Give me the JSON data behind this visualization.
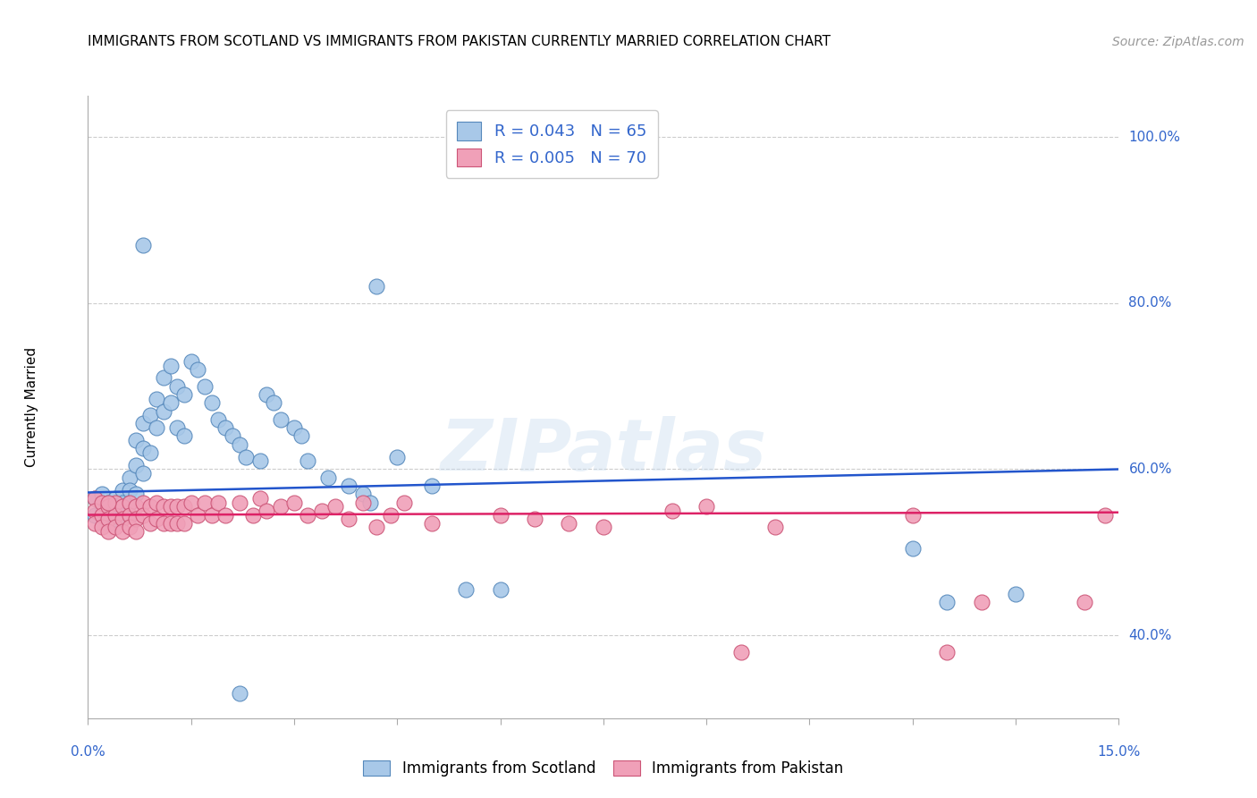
{
  "title": "IMMIGRANTS FROM SCOTLAND VS IMMIGRANTS FROM PAKISTAN CURRENTLY MARRIED CORRELATION CHART",
  "source": "Source: ZipAtlas.com",
  "ylabel": "Currently Married",
  "xlim": [
    0.0,
    0.15
  ],
  "ylim": [
    0.3,
    1.05
  ],
  "yticks": [
    0.4,
    0.6,
    0.8,
    1.0
  ],
  "ytick_labels": [
    "40.0%",
    "60.0%",
    "80.0%",
    "100.0%"
  ],
  "scotland_color": "#a8c8e8",
  "scotland_edge": "#5588bb",
  "pakistan_color": "#f0a0b8",
  "pakistan_edge": "#cc5577",
  "trend_scotland": "#2255cc",
  "trend_pakistan": "#dd2266",
  "legend_r_scotland": "R = 0.043",
  "legend_n_scotland": "N = 65",
  "legend_r_pakistan": "R = 0.005",
  "legend_n_pakistan": "N = 70",
  "scot_x": [
    0.001,
    0.001,
    0.002,
    0.002,
    0.003,
    0.003,
    0.003,
    0.004,
    0.004,
    0.004,
    0.005,
    0.005,
    0.005,
    0.006,
    0.006,
    0.006,
    0.006,
    0.007,
    0.007,
    0.007,
    0.008,
    0.008,
    0.008,
    0.009,
    0.009,
    0.01,
    0.01,
    0.011,
    0.011,
    0.012,
    0.012,
    0.013,
    0.013,
    0.014,
    0.014,
    0.015,
    0.016,
    0.017,
    0.018,
    0.019,
    0.02,
    0.021,
    0.022,
    0.023,
    0.025,
    0.026,
    0.027,
    0.028,
    0.03,
    0.031,
    0.032,
    0.035,
    0.038,
    0.04,
    0.041,
    0.042,
    0.045,
    0.05,
    0.055,
    0.06,
    0.022,
    0.12,
    0.125,
    0.135,
    0.008
  ],
  "scot_y": [
    0.565,
    0.545,
    0.57,
    0.555,
    0.56,
    0.545,
    0.535,
    0.565,
    0.555,
    0.54,
    0.575,
    0.56,
    0.545,
    0.59,
    0.575,
    0.56,
    0.545,
    0.635,
    0.605,
    0.57,
    0.655,
    0.625,
    0.595,
    0.665,
    0.62,
    0.685,
    0.65,
    0.71,
    0.67,
    0.725,
    0.68,
    0.7,
    0.65,
    0.69,
    0.64,
    0.73,
    0.72,
    0.7,
    0.68,
    0.66,
    0.65,
    0.64,
    0.63,
    0.615,
    0.61,
    0.69,
    0.68,
    0.66,
    0.65,
    0.64,
    0.61,
    0.59,
    0.58,
    0.57,
    0.56,
    0.82,
    0.615,
    0.58,
    0.455,
    0.455,
    0.33,
    0.505,
    0.44,
    0.45,
    0.87
  ],
  "pak_x": [
    0.001,
    0.001,
    0.001,
    0.002,
    0.002,
    0.002,
    0.003,
    0.003,
    0.003,
    0.004,
    0.004,
    0.004,
    0.005,
    0.005,
    0.005,
    0.006,
    0.006,
    0.006,
    0.007,
    0.007,
    0.007,
    0.008,
    0.008,
    0.009,
    0.009,
    0.01,
    0.01,
    0.011,
    0.011,
    0.012,
    0.012,
    0.013,
    0.013,
    0.014,
    0.014,
    0.015,
    0.016,
    0.017,
    0.018,
    0.019,
    0.02,
    0.022,
    0.024,
    0.025,
    0.026,
    0.028,
    0.03,
    0.032,
    0.034,
    0.036,
    0.038,
    0.04,
    0.042,
    0.044,
    0.046,
    0.05,
    0.06,
    0.065,
    0.07,
    0.075,
    0.085,
    0.09,
    0.095,
    0.1,
    0.12,
    0.125,
    0.13,
    0.145,
    0.148,
    0.003
  ],
  "pak_y": [
    0.565,
    0.55,
    0.535,
    0.56,
    0.545,
    0.53,
    0.555,
    0.54,
    0.525,
    0.56,
    0.545,
    0.53,
    0.555,
    0.54,
    0.525,
    0.56,
    0.545,
    0.53,
    0.555,
    0.54,
    0.525,
    0.56,
    0.545,
    0.555,
    0.535,
    0.56,
    0.54,
    0.555,
    0.535,
    0.555,
    0.535,
    0.555,
    0.535,
    0.555,
    0.535,
    0.56,
    0.545,
    0.56,
    0.545,
    0.56,
    0.545,
    0.56,
    0.545,
    0.565,
    0.55,
    0.555,
    0.56,
    0.545,
    0.55,
    0.555,
    0.54,
    0.56,
    0.53,
    0.545,
    0.56,
    0.535,
    0.545,
    0.54,
    0.535,
    0.53,
    0.55,
    0.555,
    0.38,
    0.53,
    0.545,
    0.38,
    0.44,
    0.44,
    0.545,
    0.56
  ],
  "scot_trend_y0": 0.572,
  "scot_trend_y1": 0.6,
  "pak_trend_y0": 0.545,
  "pak_trend_y1": 0.548
}
